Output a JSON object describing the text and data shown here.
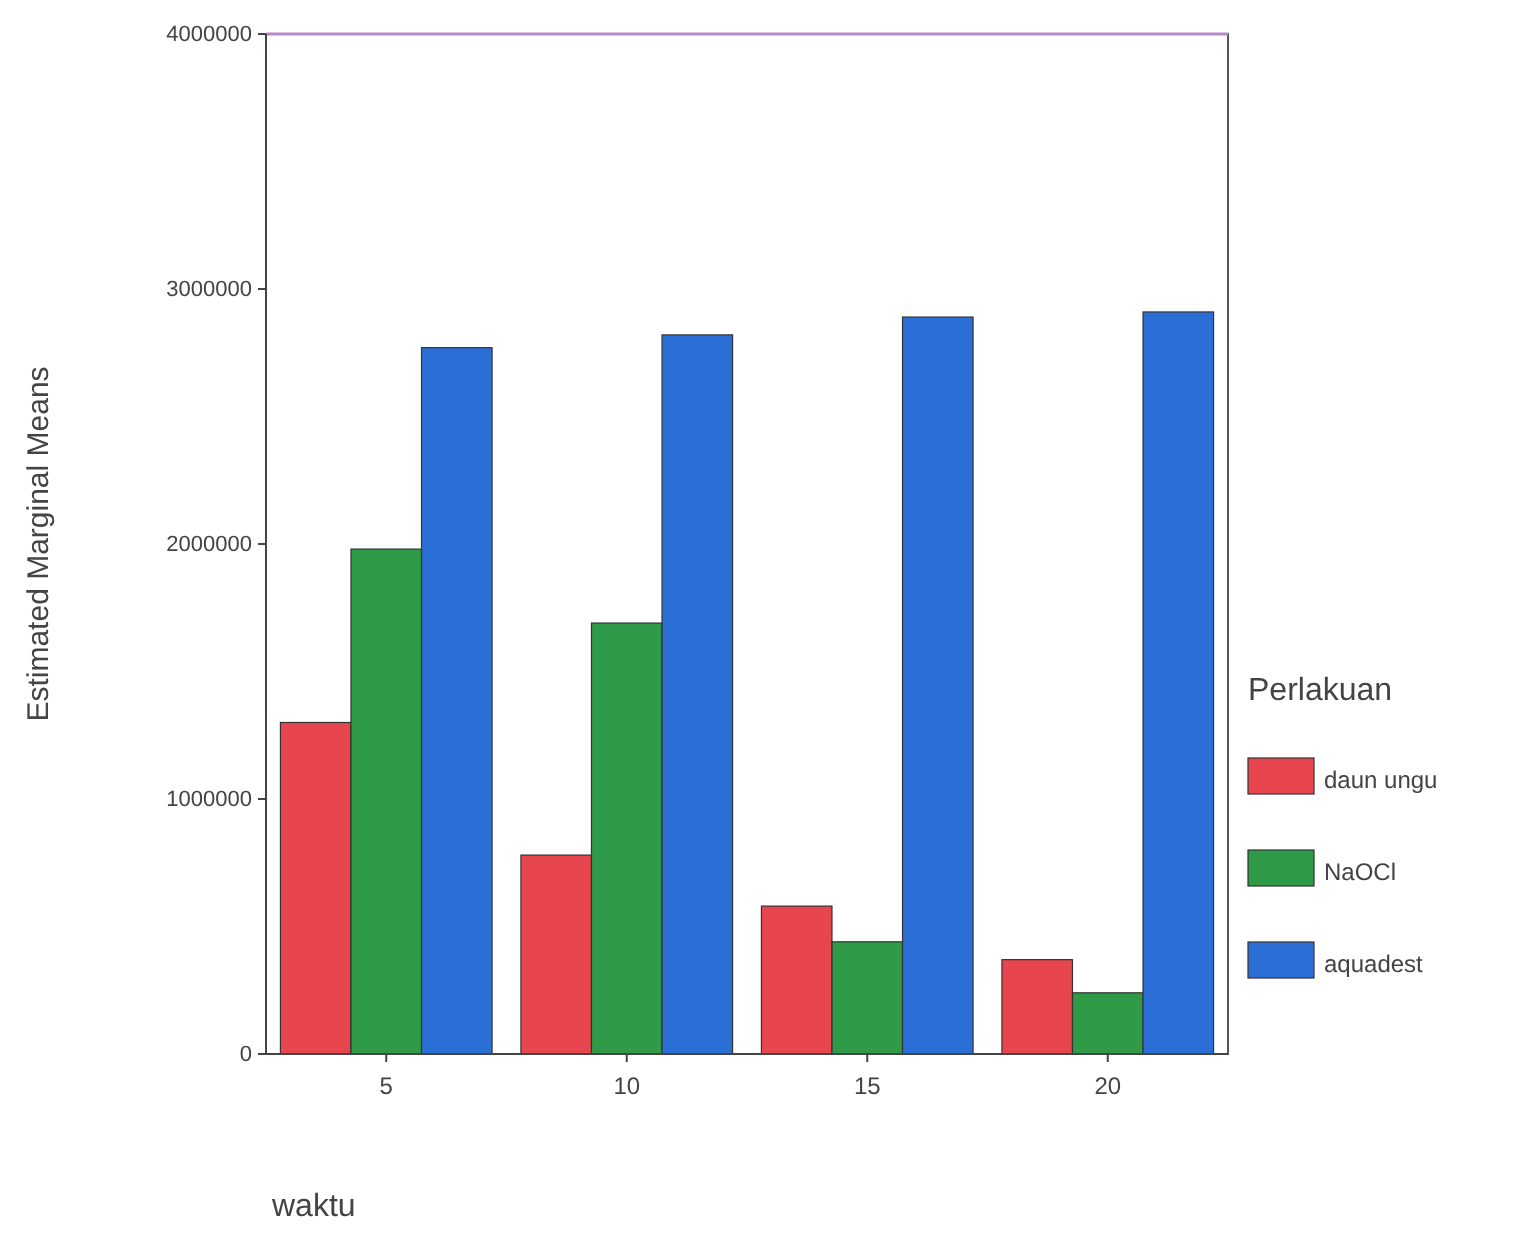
{
  "chart_data": {
    "type": "bar",
    "categories": [
      "5",
      "10",
      "15",
      "20"
    ],
    "series": [
      {
        "name": "daun ungu",
        "color": "#e8464e",
        "values": [
          1300000,
          780000,
          580000,
          370000
        ]
      },
      {
        "name": "NaOCl",
        "color": "#2f9a48",
        "values": [
          1980000,
          1690000,
          440000,
          240000
        ]
      },
      {
        "name": "aquadest",
        "color": "#2b6fd6",
        "values": [
          2770000,
          2820000,
          2890000,
          2910000
        ]
      }
    ],
    "xlabel": "waktu",
    "ylabel": "Estimated Marginal Means",
    "legend_title": "Perlakuan",
    "legend": "right",
    "ylim": [
      0,
      4000000
    ],
    "yticks": [
      0,
      1000000,
      2000000,
      3000000,
      4000000
    ],
    "grid": false
  }
}
